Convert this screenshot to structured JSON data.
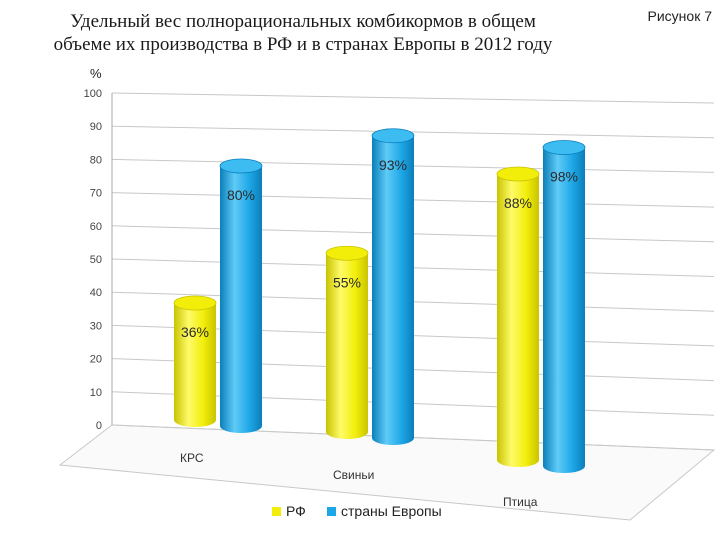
{
  "header": {
    "title_line1": "Удельный вес полнорациональных комбикормов в общем",
    "title_line2": "объеме их производства в РФ и в странах Европы в 2012 году",
    "figure_label": "Рисунок 7",
    "unit": "%"
  },
  "colors": {
    "rf": "#f2ee0a",
    "rf_dark": "#c9c400",
    "europe": "#1ea7e6",
    "europe_dark": "#0b7fba",
    "grid": "#c8c8c8"
  },
  "chart_data": {
    "type": "bar",
    "title": "Удельный вес полнорациональных комбикормов в общем объеме их производства в РФ и в странах Европы в 2012 году",
    "ylabel": "%",
    "xlabel": "",
    "ylim": [
      0,
      100
    ],
    "yticks": [
      "0",
      "10",
      "20",
      "30",
      "40",
      "50",
      "60",
      "70",
      "80",
      "90",
      "100"
    ],
    "grid": true,
    "legend_position": "bottom",
    "categories": [
      "КРС",
      "Свиньи",
      "Птица"
    ],
    "series": [
      {
        "name": "РФ",
        "values": [
          36,
          55,
          88
        ],
        "labels": [
          "36%",
          "55%",
          "88%"
        ]
      },
      {
        "name": "страны Европы",
        "values": [
          80,
          93,
          98
        ],
        "labels": [
          "80%",
          "93%",
          "98%"
        ]
      }
    ]
  }
}
